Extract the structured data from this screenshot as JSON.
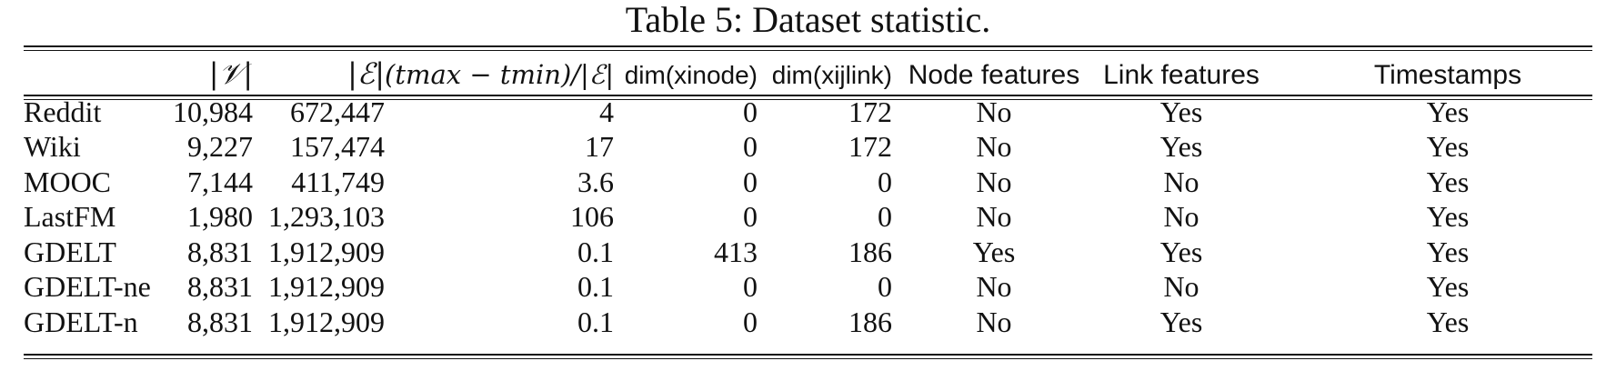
{
  "caption": "Table 5: Dataset statistic.",
  "headers": {
    "V": "|𝒱|",
    "E": "|ℰ|",
    "ratio": "(tmax − tmin)/|ℰ|",
    "dim_node": "dim(xinode)",
    "dim_link": "dim(xijlink)",
    "node_features": "Node features",
    "link_features": "Link features",
    "timestamps": "Timestamps"
  },
  "rows": [
    {
      "name": "Reddit",
      "V": "10,984",
      "E": "672,447",
      "ratio": "4",
      "dim_node": "0",
      "dim_link": "172",
      "node": "No",
      "link": "Yes",
      "ts": "Yes"
    },
    {
      "name": "Wiki",
      "V": "9,227",
      "E": "157,474",
      "ratio": "17",
      "dim_node": "0",
      "dim_link": "172",
      "node": "No",
      "link": "Yes",
      "ts": "Yes"
    },
    {
      "name": "MOOC",
      "V": "7,144",
      "E": "411,749",
      "ratio": "3.6",
      "dim_node": "0",
      "dim_link": "0",
      "node": "No",
      "link": "No",
      "ts": "Yes"
    },
    {
      "name": "LastFM",
      "V": "1,980",
      "E": "1,293,103",
      "ratio": "106",
      "dim_node": "0",
      "dim_link": "0",
      "node": "No",
      "link": "No",
      "ts": "Yes"
    },
    {
      "name": "GDELT",
      "V": "8,831",
      "E": "1,912,909",
      "ratio": "0.1",
      "dim_node": "413",
      "dim_link": "186",
      "node": "Yes",
      "link": "Yes",
      "ts": "Yes"
    },
    {
      "name": "GDELT-ne",
      "V": "8,831",
      "E": "1,912,909",
      "ratio": "0.1",
      "dim_node": "0",
      "dim_link": "0",
      "node": "No",
      "link": "No",
      "ts": "Yes"
    },
    {
      "name": "GDELT-n",
      "V": "8,831",
      "E": "1,912,909",
      "ratio": "0.1",
      "dim_node": "0",
      "dim_link": "186",
      "node": "No",
      "link": "Yes",
      "ts": "Yes"
    }
  ]
}
